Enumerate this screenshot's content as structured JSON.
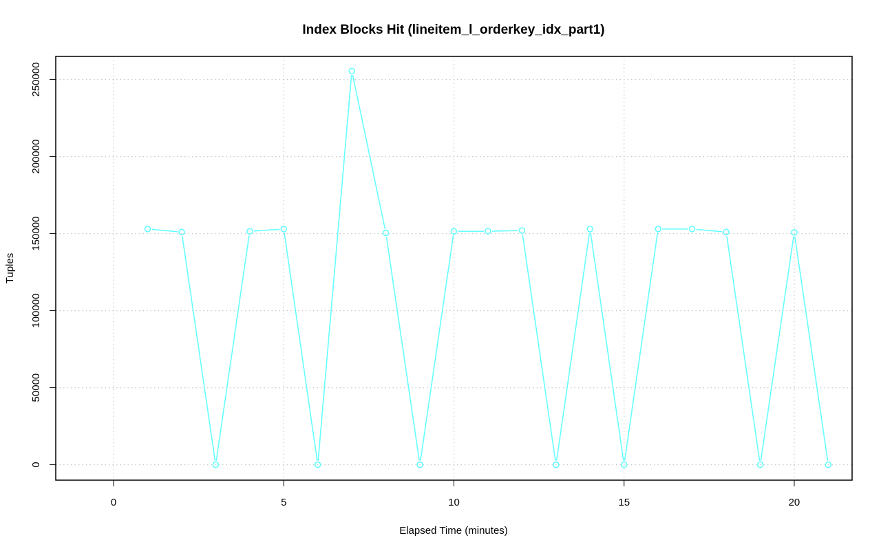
{
  "chart_data": {
    "type": "line",
    "title": "Index Blocks Hit (lineitem_l_orderkey_idx_part1)",
    "xlabel": "Elapsed Time (minutes)",
    "ylabel": "Tuples",
    "xlim": [
      -1.7,
      21.7
    ],
    "ylim": [
      -10000,
      265000
    ],
    "x_ticks": [
      0,
      5,
      10,
      15,
      20
    ],
    "y_ticks": [
      0,
      50000,
      100000,
      150000,
      200000,
      250000
    ],
    "grid": true,
    "series": [
      {
        "color": "#66ffff",
        "marker": "open-circle",
        "x": [
          1,
          2,
          3,
          4,
          5,
          6,
          7,
          8,
          9,
          10,
          11,
          12,
          13,
          14,
          15,
          16,
          17,
          18,
          19,
          20,
          21
        ],
        "values": [
          153000,
          151000,
          0,
          151500,
          153000,
          0,
          255500,
          150500,
          0,
          151500,
          151500,
          152000,
          0,
          153000,
          0,
          153000,
          153000,
          151000,
          0,
          150800,
          0
        ]
      }
    ]
  }
}
